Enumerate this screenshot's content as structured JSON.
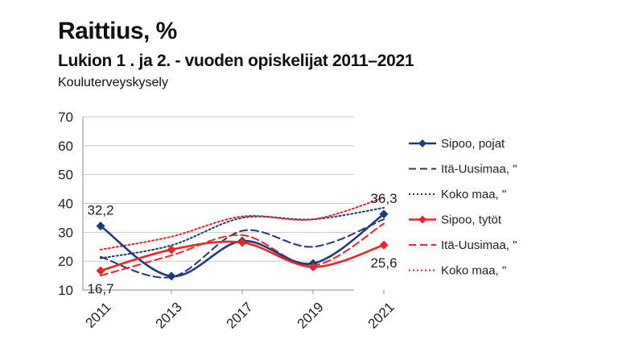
{
  "header": {
    "title": "Raittius, %",
    "subtitle": "Lukion 1 . ja 2. - vuoden opiskelijat 2011–2021",
    "source": "Kouluterveyskysely"
  },
  "chart_data": {
    "type": "line",
    "title": "Raittius, %",
    "xlabel": "",
    "ylabel": "",
    "categories": [
      "2011",
      "2013",
      "2017",
      "2019",
      "2021"
    ],
    "ylim": [
      10,
      70
    ],
    "yticks": [
      "10",
      "20",
      "30",
      "40",
      "50",
      "60",
      "70"
    ],
    "grid": true,
    "legend_position": "right",
    "series": [
      {
        "name": "Sipoo, pojat",
        "values": [
          32.2,
          14.8,
          27.0,
          19.2,
          36.3
        ],
        "color": "#1f3a78",
        "style": "solid",
        "marker": "diamond"
      },
      {
        "name": "Itä-Uusimaa, \"",
        "values": [
          21.5,
          14.5,
          30.5,
          25.0,
          34.5
        ],
        "color": "#1f3a78",
        "style": "dashed",
        "marker": "none"
      },
      {
        "name": "Koko maa, \"",
        "values": [
          21.0,
          25.5,
          35.0,
          34.5,
          38.5
        ],
        "color": "#1f3a78",
        "style": "dotted",
        "marker": "none"
      },
      {
        "name": "Sipoo, tytöt",
        "values": [
          16.7,
          24.0,
          26.5,
          18.0,
          25.6
        ],
        "color": "#e8252a",
        "style": "solid",
        "marker": "diamond"
      },
      {
        "name": "Itä-Uusimaa, \"",
        "values": [
          15.0,
          22.0,
          29.0,
          18.5,
          33.0
        ],
        "color": "#e8252a",
        "style": "dashed",
        "marker": "none"
      },
      {
        "name": "Koko maa, \"",
        "values": [
          24.0,
          28.5,
          35.5,
          34.5,
          42.0
        ],
        "color": "#e8252a",
        "style": "dotted",
        "marker": "none"
      }
    ],
    "data_labels": [
      {
        "text": "32,2",
        "series": 0,
        "point": 0,
        "pos": "above"
      },
      {
        "text": "16,7",
        "series": 3,
        "point": 0,
        "pos": "below"
      },
      {
        "text": "36,3",
        "series": 0,
        "point": 4,
        "pos": "above"
      },
      {
        "text": "25,6",
        "series": 3,
        "point": 4,
        "pos": "below"
      }
    ]
  }
}
